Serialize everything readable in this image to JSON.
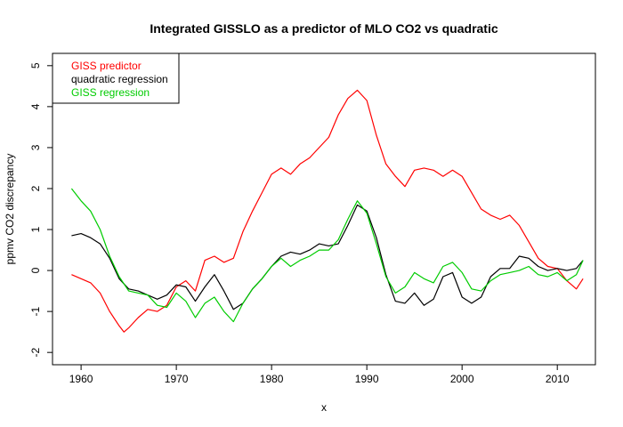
{
  "chart_data": {
    "type": "line",
    "title": "Integrated GISSLO as a predictor of MLO CO2 vs quadratic",
    "xlabel": "x",
    "ylabel": "ppmv CO2 discrepancy",
    "xlim": [
      1957,
      2014
    ],
    "ylim": [
      -2.3,
      5.3
    ],
    "xticks": [
      1960,
      1970,
      1980,
      1990,
      2000,
      2010
    ],
    "yticks": [
      -2,
      -1,
      0,
      1,
      2,
      3,
      4,
      5
    ],
    "grid": false,
    "legend_position": "top-left",
    "series": [
      {
        "name": "GISS predictor",
        "color": "#ff0000",
        "points": [
          [
            1959,
            -0.1
          ],
          [
            1960,
            -0.2
          ],
          [
            1961,
            -0.3
          ],
          [
            1962,
            -0.55
          ],
          [
            1963,
            -1.0
          ],
          [
            1964,
            -1.35
          ],
          [
            1964.5,
            -1.5
          ],
          [
            1965,
            -1.4
          ],
          [
            1966,
            -1.15
          ],
          [
            1967,
            -0.95
          ],
          [
            1968,
            -1.0
          ],
          [
            1969,
            -0.85
          ],
          [
            1970,
            -0.4
          ],
          [
            1971,
            -0.25
          ],
          [
            1972,
            -0.5
          ],
          [
            1973,
            0.25
          ],
          [
            1974,
            0.35
          ],
          [
            1975,
            0.2
          ],
          [
            1976,
            0.3
          ],
          [
            1977,
            0.95
          ],
          [
            1978,
            1.45
          ],
          [
            1979,
            1.9
          ],
          [
            1980,
            2.35
          ],
          [
            1981,
            2.5
          ],
          [
            1982,
            2.35
          ],
          [
            1983,
            2.6
          ],
          [
            1984,
            2.75
          ],
          [
            1985,
            3.0
          ],
          [
            1986,
            3.25
          ],
          [
            1987,
            3.8
          ],
          [
            1988,
            4.2
          ],
          [
            1989,
            4.4
          ],
          [
            1990,
            4.15
          ],
          [
            1991,
            3.3
          ],
          [
            1992,
            2.6
          ],
          [
            1993,
            2.3
          ],
          [
            1994,
            2.05
          ],
          [
            1995,
            2.45
          ],
          [
            1996,
            2.5
          ],
          [
            1997,
            2.45
          ],
          [
            1998,
            2.3
          ],
          [
            1999,
            2.45
          ],
          [
            2000,
            2.3
          ],
          [
            2001,
            1.9
          ],
          [
            2002,
            1.5
          ],
          [
            2003,
            1.35
          ],
          [
            2004,
            1.25
          ],
          [
            2005,
            1.35
          ],
          [
            2006,
            1.1
          ],
          [
            2007,
            0.7
          ],
          [
            2008,
            0.3
          ],
          [
            2009,
            0.1
          ],
          [
            2010,
            0.05
          ],
          [
            2011,
            -0.25
          ],
          [
            2012,
            -0.45
          ],
          [
            2012.7,
            -0.2
          ]
        ]
      },
      {
        "name": "quadratic regression",
        "color": "#000000",
        "points": [
          [
            1959,
            0.85
          ],
          [
            1960,
            0.9
          ],
          [
            1961,
            0.8
          ],
          [
            1962,
            0.65
          ],
          [
            1963,
            0.3
          ],
          [
            1964,
            -0.2
          ],
          [
            1965,
            -0.45
          ],
          [
            1966,
            -0.5
          ],
          [
            1967,
            -0.6
          ],
          [
            1968,
            -0.7
          ],
          [
            1969,
            -0.6
          ],
          [
            1970,
            -0.35
          ],
          [
            1971,
            -0.4
          ],
          [
            1972,
            -0.75
          ],
          [
            1973,
            -0.4
          ],
          [
            1974,
            -0.1
          ],
          [
            1975,
            -0.5
          ],
          [
            1976,
            -0.95
          ],
          [
            1977,
            -0.8
          ],
          [
            1978,
            -0.45
          ],
          [
            1979,
            -0.2
          ],
          [
            1980,
            0.1
          ],
          [
            1981,
            0.35
          ],
          [
            1982,
            0.45
          ],
          [
            1983,
            0.4
          ],
          [
            1984,
            0.5
          ],
          [
            1985,
            0.65
          ],
          [
            1986,
            0.6
          ],
          [
            1987,
            0.65
          ],
          [
            1988,
            1.1
          ],
          [
            1989,
            1.6
          ],
          [
            1990,
            1.45
          ],
          [
            1991,
            0.8
          ],
          [
            1992,
            -0.1
          ],
          [
            1993,
            -0.75
          ],
          [
            1994,
            -0.8
          ],
          [
            1995,
            -0.55
          ],
          [
            1996,
            -0.85
          ],
          [
            1997,
            -0.7
          ],
          [
            1998,
            -0.15
          ],
          [
            1999,
            -0.05
          ],
          [
            2000,
            -0.65
          ],
          [
            2001,
            -0.8
          ],
          [
            2002,
            -0.65
          ],
          [
            2003,
            -0.15
          ],
          [
            2004,
            0.05
          ],
          [
            2005,
            0.05
          ],
          [
            2006,
            0.35
          ],
          [
            2007,
            0.3
          ],
          [
            2008,
            0.1
          ],
          [
            2009,
            0.0
          ],
          [
            2010,
            0.05
          ],
          [
            2011,
            0.0
          ],
          [
            2012,
            0.05
          ],
          [
            2012.7,
            0.25
          ]
        ]
      },
      {
        "name": "GISS regression",
        "color": "#00cc00",
        "points": [
          [
            1959,
            2.0
          ],
          [
            1960,
            1.7
          ],
          [
            1961,
            1.45
          ],
          [
            1962,
            1.0
          ],
          [
            1963,
            0.35
          ],
          [
            1964,
            -0.15
          ],
          [
            1965,
            -0.5
          ],
          [
            1966,
            -0.55
          ],
          [
            1967,
            -0.6
          ],
          [
            1968,
            -0.85
          ],
          [
            1969,
            -0.9
          ],
          [
            1970,
            -0.55
          ],
          [
            1971,
            -0.75
          ],
          [
            1972,
            -1.15
          ],
          [
            1973,
            -0.8
          ],
          [
            1974,
            -0.65
          ],
          [
            1975,
            -1.0
          ],
          [
            1976,
            -1.25
          ],
          [
            1977,
            -0.8
          ],
          [
            1978,
            -0.45
          ],
          [
            1979,
            -0.2
          ],
          [
            1980,
            0.1
          ],
          [
            1981,
            0.3
          ],
          [
            1982,
            0.1
          ],
          [
            1983,
            0.25
          ],
          [
            1984,
            0.35
          ],
          [
            1985,
            0.5
          ],
          [
            1986,
            0.5
          ],
          [
            1987,
            0.75
          ],
          [
            1988,
            1.25
          ],
          [
            1989,
            1.7
          ],
          [
            1990,
            1.4
          ],
          [
            1991,
            0.65
          ],
          [
            1992,
            -0.15
          ],
          [
            1993,
            -0.55
          ],
          [
            1994,
            -0.4
          ],
          [
            1995,
            -0.05
          ],
          [
            1996,
            -0.2
          ],
          [
            1997,
            -0.3
          ],
          [
            1998,
            0.1
          ],
          [
            1999,
            0.2
          ],
          [
            2000,
            -0.05
          ],
          [
            2001,
            -0.45
          ],
          [
            2002,
            -0.5
          ],
          [
            2003,
            -0.25
          ],
          [
            2004,
            -0.1
          ],
          [
            2005,
            -0.05
          ],
          [
            2006,
            0.0
          ],
          [
            2007,
            0.1
          ],
          [
            2008,
            -0.1
          ],
          [
            2009,
            -0.15
          ],
          [
            2010,
            -0.05
          ],
          [
            2011,
            -0.25
          ],
          [
            2012,
            -0.1
          ],
          [
            2012.7,
            0.25
          ]
        ]
      }
    ]
  }
}
